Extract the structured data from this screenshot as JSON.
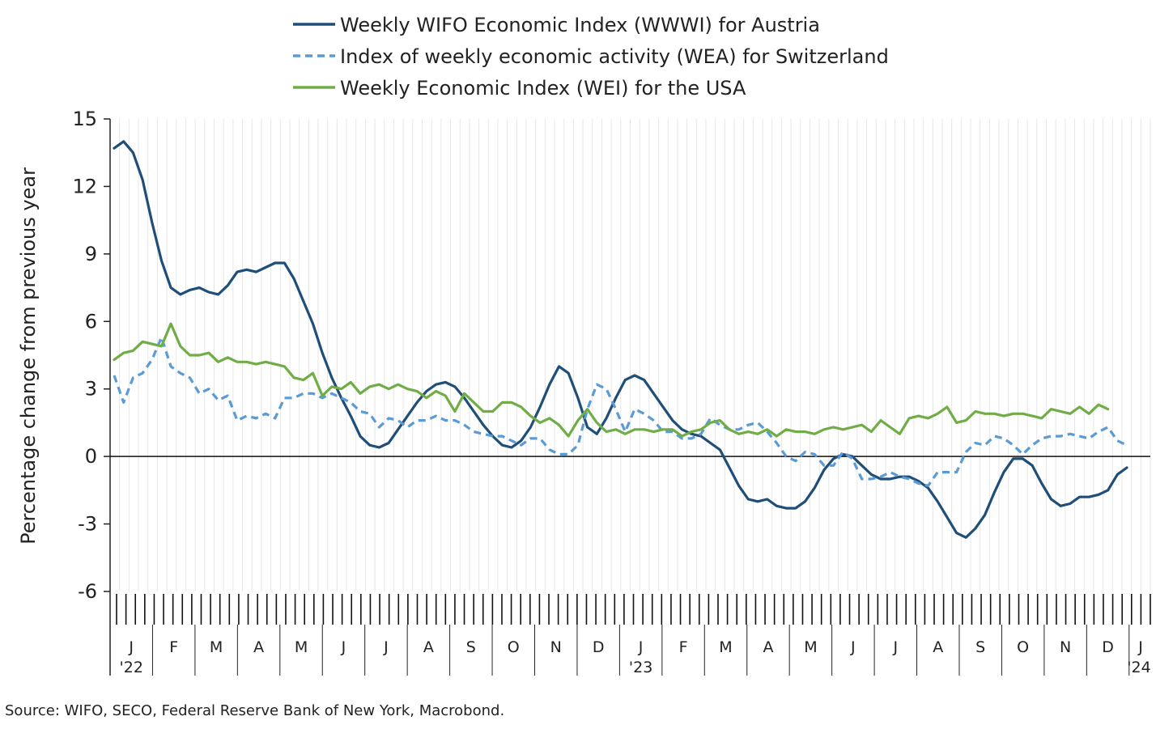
{
  "source": "Source: WIFO, SECO, Federal Reserve Bank of New York, Macrobond.",
  "chart_data": {
    "type": "line",
    "title": "",
    "ylabel": "Percentage change from previous year",
    "xlabel": "",
    "ylim": [
      -6,
      15
    ],
    "yticks": [
      15,
      12,
      9,
      6,
      3,
      0,
      -3,
      -6
    ],
    "grid": "vertical weekly gridlines",
    "legend_position": "top",
    "x_start": "2022-01",
    "x_end": "2024-01",
    "x_month_labels": [
      {
        "label": "J",
        "year": "'22"
      },
      {
        "label": "F"
      },
      {
        "label": "M"
      },
      {
        "label": "A"
      },
      {
        "label": "M"
      },
      {
        "label": "J"
      },
      {
        "label": "J"
      },
      {
        "label": "A"
      },
      {
        "label": "S"
      },
      {
        "label": "O"
      },
      {
        "label": "N"
      },
      {
        "label": "D"
      },
      {
        "label": "J",
        "year": "'23"
      },
      {
        "label": "F"
      },
      {
        "label": "M"
      },
      {
        "label": "A"
      },
      {
        "label": "M"
      },
      {
        "label": "J"
      },
      {
        "label": "J"
      },
      {
        "label": "A"
      },
      {
        "label": "S"
      },
      {
        "label": "O"
      },
      {
        "label": "N"
      },
      {
        "label": "D"
      },
      {
        "label": "J",
        "year": "'24"
      }
    ],
    "series": [
      {
        "name": "Weekly WIFO Economic Index (WWWI) for Austria",
        "color": "#1f4e79",
        "style": "solid",
        "values": [
          13.7,
          14.0,
          13.5,
          12.3,
          10.4,
          8.7,
          7.5,
          7.2,
          7.4,
          7.5,
          7.3,
          7.2,
          7.6,
          8.2,
          8.3,
          8.2,
          8.4,
          8.6,
          8.6,
          7.9,
          6.9,
          5.9,
          4.6,
          3.5,
          2.6,
          1.8,
          0.9,
          0.5,
          0.4,
          0.6,
          1.2,
          1.8,
          2.4,
          2.9,
          3.2,
          3.3,
          3.1,
          2.6,
          2.0,
          1.4,
          0.9,
          0.5,
          0.4,
          0.7,
          1.3,
          2.2,
          3.2,
          4.0,
          3.7,
          2.6,
          1.3,
          1.0,
          1.7,
          2.6,
          3.4,
          3.6,
          3.4,
          2.8,
          2.2,
          1.6,
          1.2,
          1.0,
          0.9,
          0.6,
          0.3,
          -0.5,
          -1.3,
          -1.9,
          -2.0,
          -1.9,
          -2.2,
          -2.3,
          -2.3,
          -2.0,
          -1.4,
          -0.6,
          -0.1,
          0.1,
          0.0,
          -0.4,
          -0.8,
          -1.0,
          -1.0,
          -0.9,
          -0.9,
          -1.1,
          -1.4,
          -2.0,
          -2.7,
          -3.4,
          -3.6,
          -3.2,
          -2.6,
          -1.6,
          -0.7,
          -0.1,
          -0.1,
          -0.4,
          -1.2,
          -1.9,
          -2.2,
          -2.1,
          -1.8,
          -1.8,
          -1.7,
          -1.5,
          -0.8,
          -0.5
        ]
      },
      {
        "name": "Index of weekly economic activity (WEA) for Switzerland",
        "color": "#5b9bd5",
        "style": "dashed",
        "values": [
          3.6,
          2.4,
          3.5,
          3.7,
          4.3,
          5.3,
          4.0,
          3.7,
          3.5,
          2.8,
          3.0,
          2.5,
          2.7,
          1.6,
          1.8,
          1.7,
          1.9,
          1.7,
          2.6,
          2.6,
          2.8,
          2.8,
          2.6,
          2.8,
          2.6,
          2.4,
          2.0,
          1.9,
          1.3,
          1.7,
          1.6,
          1.3,
          1.6,
          1.6,
          1.8,
          1.6,
          1.6,
          1.4,
          1.1,
          1.0,
          0.9,
          0.9,
          0.7,
          0.5,
          0.8,
          0.8,
          0.3,
          0.1,
          0.1,
          0.5,
          2.1,
          3.2,
          3.0,
          2.1,
          1.1,
          2.1,
          1.9,
          1.6,
          1.1,
          1.1,
          0.8,
          0.8,
          1.0,
          1.7,
          1.4,
          1.2,
          1.2,
          1.4,
          1.5,
          1.1,
          0.6,
          0.0,
          -0.2,
          0.2,
          0.1,
          -0.4,
          -0.4,
          0.2,
          -0.1,
          -1.0,
          -1.0,
          -0.9,
          -0.7,
          -0.9,
          -1.0,
          -1.2,
          -1.3,
          -0.7,
          -0.7,
          -0.7,
          0.2,
          0.6,
          0.5,
          0.9,
          0.8,
          0.5,
          0.1,
          0.5,
          0.8,
          0.9,
          0.9,
          1.0,
          0.9,
          0.8,
          1.1,
          1.3,
          0.7,
          0.5
        ]
      },
      {
        "name": "Weekly Economic Index (WEI) for the USA",
        "color": "#70ad47",
        "style": "solid",
        "values": [
          4.3,
          4.6,
          4.7,
          5.1,
          5.0,
          4.9,
          5.9,
          4.9,
          4.5,
          4.5,
          4.6,
          4.2,
          4.4,
          4.2,
          4.2,
          4.1,
          4.2,
          4.1,
          4.0,
          3.5,
          3.4,
          3.7,
          2.7,
          3.1,
          3.0,
          3.3,
          2.8,
          3.1,
          3.2,
          3.0,
          3.2,
          3.0,
          2.9,
          2.6,
          2.9,
          2.7,
          2.0,
          2.8,
          2.4,
          2.0,
          2.0,
          2.4,
          2.4,
          2.2,
          1.8,
          1.5,
          1.7,
          1.4,
          0.9,
          1.6,
          2.1,
          1.5,
          1.1,
          1.2,
          1.0,
          1.2,
          1.2,
          1.1,
          1.2,
          1.2,
          0.9,
          1.1,
          1.2,
          1.5,
          1.6,
          1.2,
          1.0,
          1.1,
          1.0,
          1.2,
          0.9,
          1.2,
          1.1,
          1.1,
          1.0,
          1.2,
          1.3,
          1.2,
          1.3,
          1.4,
          1.1,
          1.6,
          1.3,
          1.0,
          1.7,
          1.8,
          1.7,
          1.9,
          2.2,
          1.5,
          1.6,
          2.0,
          1.9,
          1.9,
          1.8,
          1.9,
          1.9,
          1.8,
          1.7,
          2.1,
          2.0,
          1.9,
          2.2,
          1.9,
          2.3,
          2.1
        ]
      }
    ]
  }
}
